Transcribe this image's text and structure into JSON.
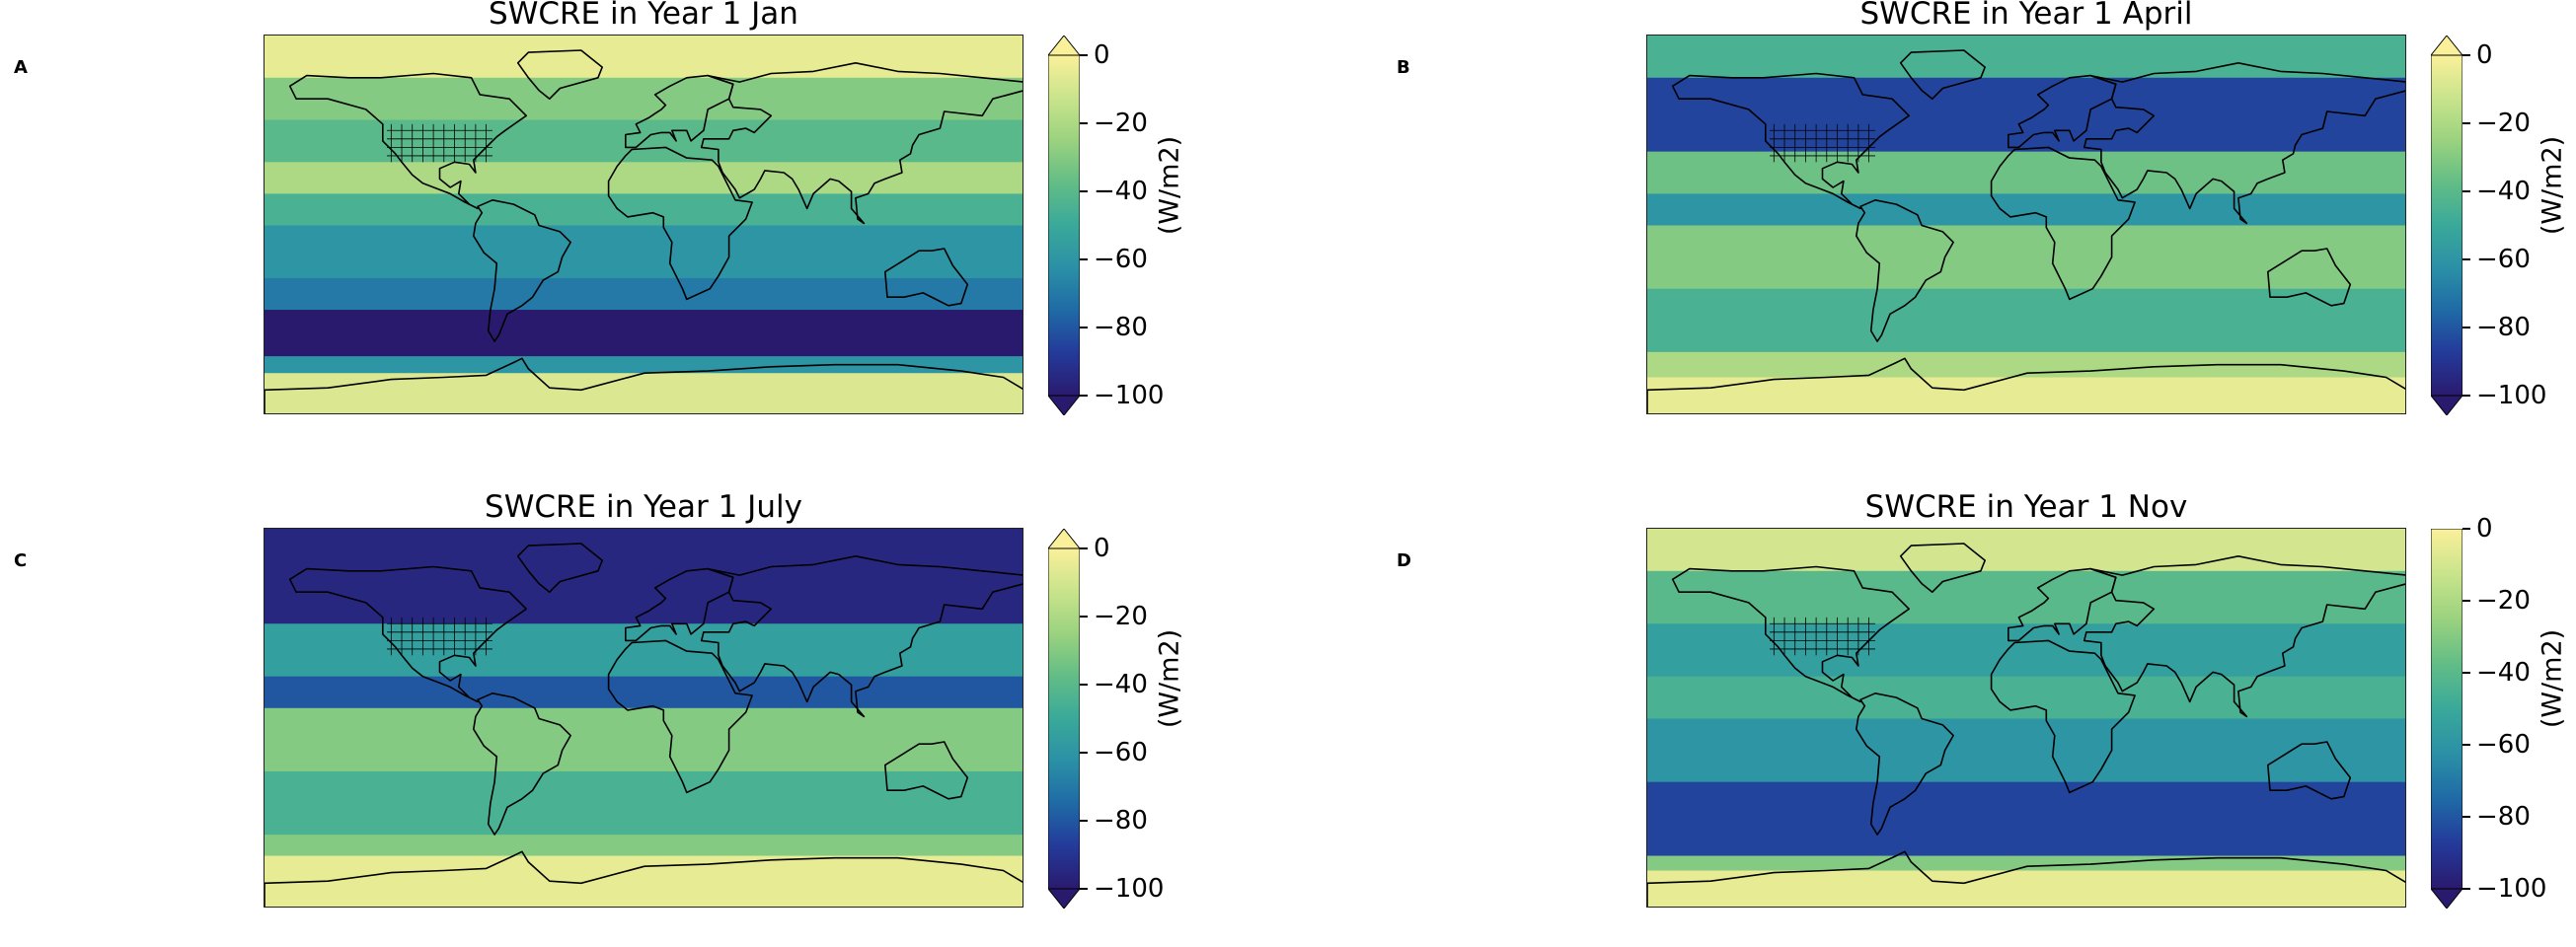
{
  "colors": {
    "cmap": [
      "#2a1a6e",
      "#243a9a",
      "#1f6aa6",
      "#2b90a6",
      "#3aa99a",
      "#62bd86",
      "#9bd27f",
      "#c9e48c",
      "#fbf09a"
    ],
    "land_outline": "#000000"
  },
  "panels": [
    {
      "letter": "A",
      "title": "SWCRE in Year 1 Jan",
      "unit": "(W/m2)",
      "ticks": [
        "0",
        "−20",
        "−40",
        "−60",
        "−80",
        "−100"
      ],
      "extend_top": true,
      "extend_bottom": true,
      "bands": [
        {
          "lat_from": 90,
          "lat_to": 70,
          "value": -5
        },
        {
          "lat_from": 70,
          "lat_to": 50,
          "value": -30
        },
        {
          "lat_from": 50,
          "lat_to": 30,
          "value": -40
        },
        {
          "lat_from": 30,
          "lat_to": 15,
          "value": -20
        },
        {
          "lat_from": 15,
          "lat_to": 0,
          "value": -45
        },
        {
          "lat_from": 0,
          "lat_to": -25,
          "value": -60
        },
        {
          "lat_from": -25,
          "lat_to": -40,
          "value": -70
        },
        {
          "lat_from": -40,
          "lat_to": -62,
          "value": -100
        },
        {
          "lat_from": -62,
          "lat_to": -70,
          "value": -60
        },
        {
          "lat_from": -70,
          "lat_to": -90,
          "value": -8
        }
      ]
    },
    {
      "letter": "B",
      "title": "SWCRE in Year 1 April",
      "unit": "(W/m2)",
      "ticks": [
        "0",
        "−20",
        "−40",
        "−60",
        "−80",
        "−100"
      ],
      "extend_top": true,
      "extend_bottom": true,
      "bands": [
        {
          "lat_from": 90,
          "lat_to": 70,
          "value": -45
        },
        {
          "lat_from": 70,
          "lat_to": 35,
          "value": -85
        },
        {
          "lat_from": 35,
          "lat_to": 15,
          "value": -35
        },
        {
          "lat_from": 15,
          "lat_to": 0,
          "value": -60
        },
        {
          "lat_from": 0,
          "lat_to": -30,
          "value": -30
        },
        {
          "lat_from": -30,
          "lat_to": -60,
          "value": -45
        },
        {
          "lat_from": -60,
          "lat_to": -72,
          "value": -20
        },
        {
          "lat_from": -72,
          "lat_to": -90,
          "value": -5
        }
      ]
    },
    {
      "letter": "C",
      "title": "SWCRE in Year 1 July",
      "unit": "(W/m2)",
      "ticks": [
        "0",
        "−20",
        "−40",
        "−60",
        "−80",
        "−100"
      ],
      "extend_top": true,
      "extend_bottom": true,
      "bands": [
        {
          "lat_from": 90,
          "lat_to": 45,
          "value": -95
        },
        {
          "lat_from": 45,
          "lat_to": 20,
          "value": -55
        },
        {
          "lat_from": 20,
          "lat_to": 5,
          "value": -80
        },
        {
          "lat_from": 5,
          "lat_to": -25,
          "value": -30
        },
        {
          "lat_from": -25,
          "lat_to": -55,
          "value": -45
        },
        {
          "lat_from": -55,
          "lat_to": -65,
          "value": -30
        },
        {
          "lat_from": -65,
          "lat_to": -90,
          "value": -5
        }
      ]
    },
    {
      "letter": "D",
      "title": "SWCRE in Year 1 Nov",
      "unit": "(W/m2)",
      "ticks": [
        "0",
        "−20",
        "−40",
        "−60",
        "−80",
        "−100"
      ],
      "extend_top": false,
      "extend_bottom": true,
      "bands": [
        {
          "lat_from": 90,
          "lat_to": 70,
          "value": -10
        },
        {
          "lat_from": 70,
          "lat_to": 45,
          "value": -40
        },
        {
          "lat_from": 45,
          "lat_to": 20,
          "value": -55
        },
        {
          "lat_from": 20,
          "lat_to": 0,
          "value": -45
        },
        {
          "lat_from": 0,
          "lat_to": -30,
          "value": -60
        },
        {
          "lat_from": -30,
          "lat_to": -65,
          "value": -85
        },
        {
          "lat_from": -65,
          "lat_to": -72,
          "value": -30
        },
        {
          "lat_from": -72,
          "lat_to": -90,
          "value": -5
        }
      ]
    }
  ]
}
